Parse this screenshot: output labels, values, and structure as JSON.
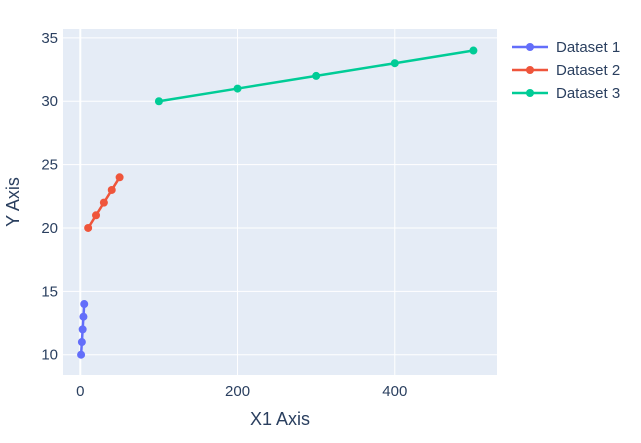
{
  "chart_data": {
    "type": "line",
    "title": "",
    "xlabel": "X1 Axis",
    "ylabel": "Y Axis",
    "xlim": [
      -22,
      530
    ],
    "ylim": [
      8.4,
      35.7
    ],
    "x_ticks": [
      0,
      200,
      400
    ],
    "y_ticks": [
      10,
      15,
      20,
      25,
      30,
      35
    ],
    "grid": true,
    "legend_position": "top-right",
    "colors": {
      "plot_background": "#e5ecf6",
      "grid": "#ffffff",
      "text": "#2a3f5f"
    },
    "series": [
      {
        "name": "Dataset 1",
        "color": "#636efa",
        "x": [
          1,
          2,
          3,
          4,
          5
        ],
        "y": [
          10,
          11,
          12,
          13,
          14
        ]
      },
      {
        "name": "Dataset 2",
        "color": "#ef553b",
        "x": [
          10,
          20,
          30,
          40,
          50
        ],
        "y": [
          20,
          21,
          22,
          23,
          24
        ]
      },
      {
        "name": "Dataset 3",
        "color": "#00cc96",
        "x": [
          100,
          200,
          300,
          400,
          500
        ],
        "y": [
          30,
          31,
          32,
          33,
          34
        ]
      }
    ]
  }
}
